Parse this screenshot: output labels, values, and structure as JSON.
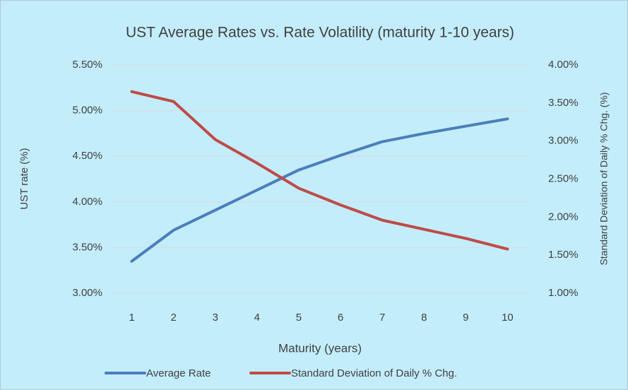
{
  "chart_data": {
    "type": "line",
    "title": "UST Average Rates vs. Rate Volatility (maturity 1-10 years)",
    "x_label": "Maturity (years)",
    "y_label": "UST rate (%)",
    "y2_label": "Standard Deviation of Daily % Chg. (%)",
    "categories": [
      "1",
      "2",
      "3",
      "4",
      "5",
      "6",
      "7",
      "8",
      "9",
      "10"
    ],
    "series": [
      {
        "name": "Average Rate",
        "color": "#4a7ebb",
        "values": [
          3.35,
          3.69,
          3.91,
          4.13,
          4.35,
          4.51,
          4.66,
          4.75,
          4.83,
          4.91
        ]
      },
      {
        "name": "Standard Deviation of Daily % Chg.",
        "color": "#be4b48",
        "axis": "y2",
        "values": [
          3.65,
          3.52,
          3.02,
          2.71,
          2.38,
          2.16,
          1.96,
          1.84,
          1.72,
          1.58
        ]
      }
    ],
    "ylim": [
      3.0,
      5.5
    ],
    "yticks": [
      {
        "value": 3.0,
        "label": "3.00%"
      },
      {
        "value": 3.5,
        "label": "3.50%"
      },
      {
        "value": 4.0,
        "label": "4.00%"
      },
      {
        "value": 4.5,
        "label": "4.50%"
      },
      {
        "value": 5.0,
        "label": "5.00%"
      },
      {
        "value": 5.5,
        "label": "5.50%"
      }
    ],
    "y2lim": [
      1.0,
      4.0
    ],
    "y2ticks": [
      {
        "value": 1.0,
        "label": "1.00%"
      },
      {
        "value": 1.5,
        "label": "1.50%"
      },
      {
        "value": 2.0,
        "label": "2.00%"
      },
      {
        "value": 2.5,
        "label": "2.50%"
      },
      {
        "value": 3.0,
        "label": "3.00%"
      },
      {
        "value": 3.5,
        "label": "3.50%"
      },
      {
        "value": 4.0,
        "label": "4.00%"
      }
    ],
    "grid": true,
    "legend": "bottom"
  }
}
